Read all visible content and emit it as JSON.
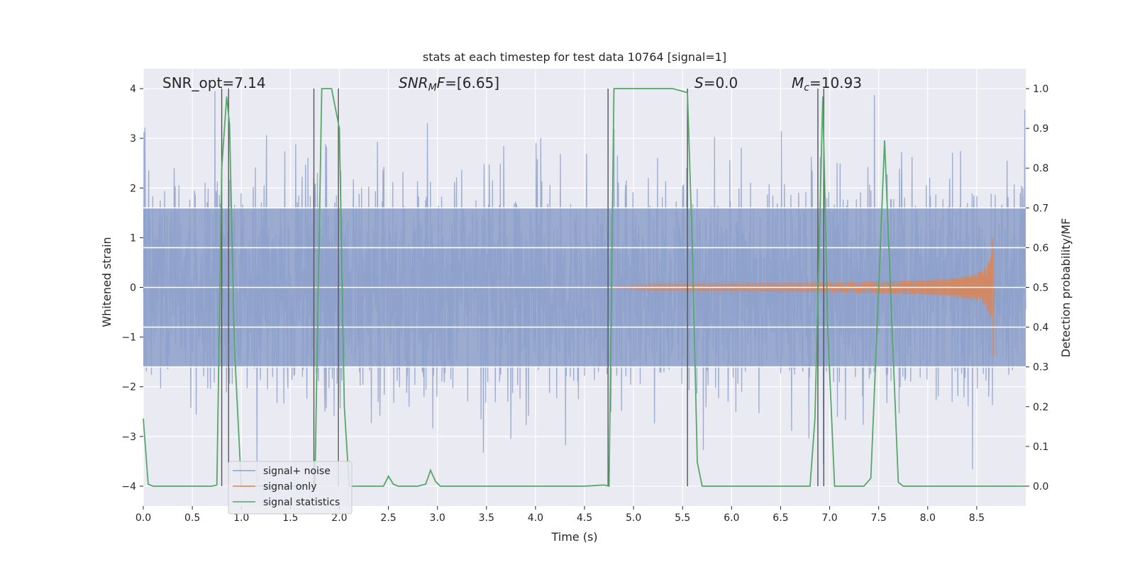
{
  "chart_data": {
    "type": "line",
    "title": "stats at each timestep for test data 10764 [signal=1]",
    "xlabel": "Time (s)",
    "ylabel_left": "Whitened strain",
    "ylabel_right": "Detection probability/MF",
    "xlim": [
      0,
      9.0
    ],
    "ylim_left": [
      -4.4,
      4.4
    ],
    "ylim_right": [
      -0.05,
      1.05
    ],
    "x_ticks": [
      "0.0",
      "0.5",
      "1.0",
      "1.5",
      "2.0",
      "2.5",
      "3.0",
      "3.5",
      "4.0",
      "4.5",
      "5.0",
      "5.5",
      "6.0",
      "6.5",
      "7.0",
      "7.5",
      "8.0",
      "8.5"
    ],
    "y_ticks_left": [
      "4",
      "3",
      "2",
      "1",
      "0",
      "−1",
      "−2",
      "−3",
      "−4"
    ],
    "y_ticks_right": [
      "1.0",
      "0.9",
      "0.8",
      "0.7",
      "0.6",
      "0.5",
      "0.4",
      "0.3",
      "0.2",
      "0.1",
      "0.0"
    ],
    "grid": true,
    "annotations": {
      "snr_opt": "SNR_opt=7.14",
      "snr_mf_label": "SNR",
      "snr_mf_sub": "M",
      "snr_mf_tail": "F",
      "snr_mf_value": "=[6.65]",
      "s_label": "S",
      "s_value": "=0.0",
      "mc_label": "M",
      "mc_sub": "c",
      "mc_value": "=10.93"
    },
    "series": [
      {
        "name": "signal+ noise",
        "color": "#8da0cb",
        "description_only": true
      },
      {
        "name": "signal only",
        "color": "#dd8452",
        "chirp_start": 4.7,
        "chirp_end": 8.67,
        "peak_amplitude": 1.0
      },
      {
        "name": "signal statistics",
        "color": "#55a868",
        "x": [
          0.0,
          0.05,
          0.1,
          0.15,
          0.2,
          0.3,
          0.4,
          0.5,
          0.6,
          0.7,
          0.75,
          0.8,
          0.85,
          0.88,
          0.93,
          1.0,
          1.1,
          1.2,
          1.3,
          1.4,
          1.5,
          1.6,
          1.7,
          1.75,
          1.82,
          1.92,
          2.0,
          2.05,
          2.1,
          2.2,
          2.3,
          2.4,
          2.45,
          2.5,
          2.55,
          2.6,
          2.7,
          2.8,
          2.88,
          2.93,
          2.98,
          3.03,
          3.1,
          3.3,
          3.5,
          3.7,
          3.9,
          4.1,
          4.3,
          4.5,
          4.7,
          4.75,
          4.8,
          4.9,
          5.0,
          5.2,
          5.4,
          5.55,
          5.6,
          5.65,
          5.7,
          5.8,
          6.0,
          6.2,
          6.4,
          6.6,
          6.8,
          6.85,
          6.93,
          6.98,
          7.05,
          7.2,
          7.35,
          7.42,
          7.5,
          7.56,
          7.62,
          7.7,
          7.75,
          7.8,
          8.0,
          8.2,
          8.4,
          8.6,
          8.8,
          9.0
        ],
        "y": [
          0.17,
          0.005,
          0.0,
          0.0,
          0.0,
          0.0,
          0.0,
          0.0,
          0.0,
          0.0,
          0.003,
          0.8,
          0.98,
          0.91,
          0.35,
          0.0,
          0.0,
          0.0,
          0.0,
          0.0,
          0.0,
          0.0,
          0.0,
          0.0,
          1.0,
          1.0,
          0.9,
          0.2,
          0.0,
          0.0,
          0.0,
          0.0,
          0.0,
          0.025,
          0.005,
          0.0,
          0.0,
          0.0,
          0.005,
          0.04,
          0.012,
          0.0,
          0.0,
          0.0,
          0.0,
          0.0,
          0.0,
          0.0,
          0.0,
          0.0,
          0.003,
          0.0,
          1.0,
          1.0,
          1.0,
          1.0,
          1.0,
          0.99,
          0.6,
          0.06,
          0.0,
          0.0,
          0.0,
          0.0,
          0.0,
          0.0,
          0.0,
          0.17,
          0.98,
          0.4,
          0.0,
          0.0,
          0.0,
          0.02,
          0.5,
          0.87,
          0.5,
          0.01,
          0.0,
          0.0,
          0.0,
          0.0,
          0.0,
          0.0,
          0.0,
          0.0
        ]
      }
    ],
    "vertical_markers": [
      0.8,
      0.87,
      1.74,
      1.99,
      4.74,
      5.55,
      6.88,
      6.94
    ],
    "horizontal_lines_right": [
      0.7,
      0.6,
      0.4,
      0.3
    ]
  }
}
